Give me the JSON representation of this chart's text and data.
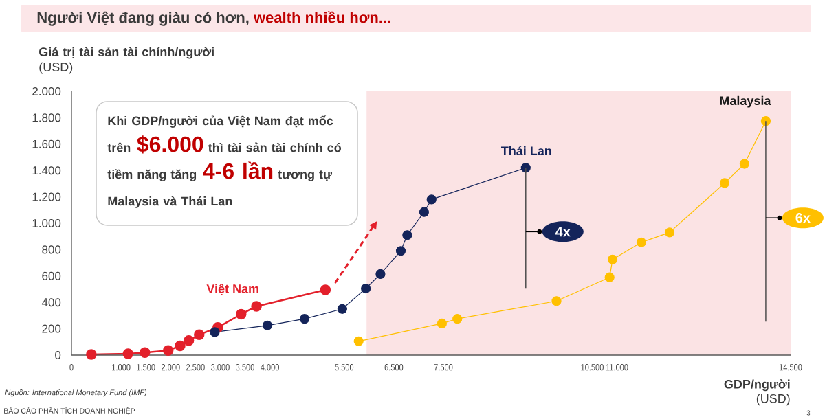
{
  "chart_data": {
    "type": "line",
    "title": "Người Việt đang giàu có hơn, **wealth nhiều hơn...**",
    "xlabel": "**GDP/người** (USD)",
    "ylabel": "**Giá trị tài sản tài chính/người** (USD)",
    "xlim": [
      0,
      14500
    ],
    "xticks": [
      0,
      {
        "value": 1000,
        "label": "1.000"
      },
      {
        "value": 1500,
        "label": "1.500"
      },
      {
        "value": 2000,
        "label": "2.000"
      },
      {
        "value": 2500,
        "label": "2.500"
      },
      {
        "value": 3000,
        "label": "3.000"
      },
      {
        "value": 3500,
        "label": "3.500"
      },
      {
        "value": 4000,
        "label": "4.000"
      },
      {
        "value": 5500,
        "label": "5.500"
      },
      {
        "value": 6500,
        "label": "6.500"
      },
      {
        "value": 7500,
        "label": "7.500"
      },
      {
        "value": 10500,
        "label": "10.500"
      },
      {
        "value": 11000,
        "label": "11.000"
      },
      {
        "value": 14500,
        "label": "14.500"
      }
    ],
    "ylim": [
      0,
      2000
    ],
    "yticks": [
      0,
      200,
      400,
      600,
      800,
      {
        "value": 1000,
        "label": "1.000"
      },
      {
        "value": 1200,
        "label": "1.200"
      },
      {
        "value": 1400,
        "label": "1.400"
      },
      {
        "value": 1600,
        "label": "1.600"
      },
      {
        "value": 1800,
        "label": "1.800"
      },
      {
        "value": 2000,
        "label": "2.000"
      }
    ],
    "marker": "circle",
    "series": [
      {
        "name": "Việt Nam",
        "color": "#e3202b",
        "x": [
          400,
          1140,
          1480,
          1950,
          2190,
          2365,
          2575,
          2950,
          3420,
          3730,
          5120
        ],
        "values": [
          5,
          10,
          20,
          35,
          70,
          110,
          155,
          210,
          310,
          370,
          495
        ]
      },
      {
        "name": "Thái Lan",
        "color": "#14245a",
        "x": [
          2890,
          3950,
          4700,
          5460,
          5935,
          6230,
          6640,
          6770,
          7110,
          7260,
          9160
        ],
        "values": [
          175,
          225,
          275,
          350,
          505,
          615,
          790,
          910,
          1085,
          1180,
          1420
        ]
      },
      {
        "name": "Malaysia",
        "color": "#ffc000",
        "x": [
          5790,
          7470,
          7780,
          9780,
          10850,
          10910,
          11490,
          12060,
          13170,
          13570,
          14000
        ],
        "values": [
          105,
          240,
          275,
          410,
          590,
          725,
          855,
          930,
          1305,
          1450,
          1775
        ]
      }
    ],
    "bands": [
      {
        "axis": "x",
        "from": 5950,
        "to": 14500,
        "color": "#fbe3e4"
      }
    ],
    "annotations": [
      "Khi GDP/người của Việt Nam đạt mốc trên **$6.000** thì tài sản tài chính có tiềm năng tăng **4-6 lần** tương tự Malaysia và Thái Lan",
      "4x",
      "6x",
      "Nguồn: International Monetary Fund (IMF)",
      "BÁO CÁO PHÂN TÍCH DOANH NGHIỆP",
      "3"
    ]
  }
}
